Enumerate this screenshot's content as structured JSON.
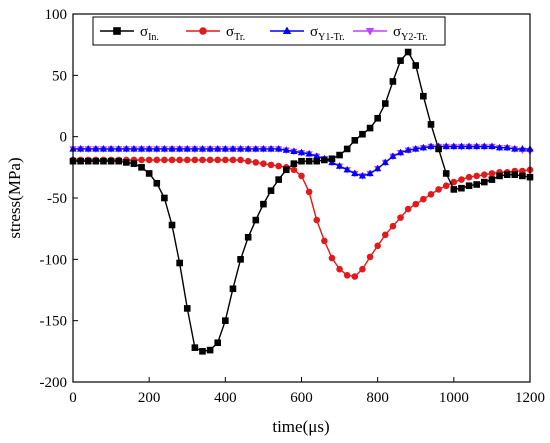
{
  "chart_data": {
    "type": "line",
    "xlabel": "time(μs)",
    "ylabel": "stress(MPa)",
    "xlim": [
      0,
      1200
    ],
    "ylim": [
      -200,
      100
    ],
    "xticks": [
      0,
      200,
      400,
      600,
      800,
      1000,
      1200
    ],
    "yticks": [
      -200,
      -150,
      -100,
      -50,
      0,
      50,
      100
    ],
    "grid": false,
    "legend_position": "top-left",
    "series": [
      {
        "name": "σ",
        "sub": "In.",
        "color": "#000000",
        "marker": "square",
        "x": [
          0,
          20,
          40,
          60,
          80,
          100,
          120,
          140,
          160,
          180,
          200,
          220,
          240,
          260,
          280,
          300,
          320,
          340,
          360,
          380,
          400,
          420,
          440,
          460,
          480,
          500,
          520,
          540,
          560,
          580,
          600,
          620,
          640,
          660,
          680,
          700,
          720,
          740,
          760,
          780,
          800,
          820,
          840,
          860,
          880,
          900,
          920,
          940,
          960,
          980,
          1000,
          1020,
          1040,
          1060,
          1080,
          1100,
          1120,
          1140,
          1160,
          1180,
          1200
        ],
        "y": [
          -20,
          -20,
          -20,
          -20,
          -20,
          -20,
          -20,
          -21,
          -22,
          -25,
          -30,
          -38,
          -50,
          -72,
          -103,
          -140,
          -172,
          -175,
          -174,
          -168,
          -150,
          -124,
          -100,
          -82,
          -68,
          -55,
          -44,
          -35,
          -27,
          -22,
          -20,
          -20,
          -20,
          -19,
          -18,
          -15,
          -10,
          -3,
          2,
          7,
          15,
          27,
          45,
          62,
          69,
          58,
          33,
          10,
          -10,
          -30,
          -43,
          -42,
          -40,
          -39,
          -37,
          -35,
          -32,
          -31,
          -31,
          -32,
          -33
        ]
      },
      {
        "name": "σ",
        "sub": "Tr.",
        "color": "#e31a1c",
        "marker": "circle",
        "x": [
          0,
          20,
          40,
          60,
          80,
          100,
          120,
          140,
          160,
          180,
          200,
          220,
          240,
          260,
          280,
          300,
          320,
          340,
          360,
          380,
          400,
          420,
          440,
          460,
          480,
          500,
          520,
          540,
          560,
          580,
          600,
          620,
          640,
          660,
          680,
          700,
          720,
          740,
          760,
          780,
          800,
          820,
          840,
          860,
          880,
          900,
          920,
          940,
          960,
          980,
          1000,
          1020,
          1040,
          1060,
          1080,
          1100,
          1120,
          1140,
          1160,
          1180,
          1200
        ],
        "y": [
          -19,
          -19,
          -19,
          -19,
          -19,
          -19,
          -19,
          -19,
          -19,
          -19,
          -19,
          -19,
          -19,
          -19,
          -19,
          -19,
          -19,
          -19,
          -19,
          -19,
          -19,
          -19,
          -19,
          -20,
          -21,
          -22,
          -23,
          -24,
          -25,
          -27,
          -32,
          -45,
          -68,
          -85,
          -99,
          -108,
          -113,
          -114,
          -108,
          -98,
          -89,
          -80,
          -73,
          -66,
          -59,
          -55,
          -51,
          -47,
          -43,
          -40,
          -37,
          -35,
          -33,
          -32,
          -31,
          -30,
          -29,
          -29,
          -28,
          -28,
          -27
        ]
      },
      {
        "name": "σ",
        "sub": "Y1-Tr.",
        "color": "#0000ff",
        "marker": "triangle-up",
        "x": [
          0,
          20,
          40,
          60,
          80,
          100,
          120,
          140,
          160,
          180,
          200,
          220,
          240,
          260,
          280,
          300,
          320,
          340,
          360,
          380,
          400,
          420,
          440,
          460,
          480,
          500,
          520,
          540,
          560,
          580,
          600,
          620,
          640,
          660,
          680,
          700,
          720,
          740,
          760,
          780,
          800,
          820,
          840,
          860,
          880,
          900,
          920,
          940,
          960,
          980,
          1000,
          1020,
          1040,
          1060,
          1080,
          1100,
          1120,
          1140,
          1160,
          1180,
          1200
        ],
        "y": [
          -10,
          -10,
          -10,
          -10,
          -10,
          -10,
          -10,
          -10,
          -10,
          -10,
          -10,
          -10,
          -10,
          -10,
          -10,
          -10,
          -10,
          -10,
          -10,
          -10,
          -10,
          -10,
          -10,
          -10,
          -10,
          -10,
          -10,
          -10,
          -11,
          -12,
          -13,
          -14,
          -16,
          -18,
          -21,
          -24,
          -27,
          -30,
          -32,
          -30,
          -26,
          -21,
          -16,
          -13,
          -11,
          -10,
          -9,
          -8,
          -8,
          -8,
          -8,
          -8,
          -8,
          -8,
          -8,
          -8,
          -9,
          -9,
          -10,
          -10,
          -10
        ]
      },
      {
        "name": "σ",
        "sub": "Y2-Tr.",
        "color": "#bf40ff",
        "marker": "triangle-down",
        "x": [
          0,
          20,
          40,
          60,
          80,
          100,
          120,
          140,
          160,
          180,
          200,
          220,
          240,
          260,
          280,
          300,
          320,
          340,
          360,
          380,
          400,
          420,
          440,
          460,
          480,
          500,
          520,
          540,
          560,
          580,
          600,
          620,
          640,
          660,
          680,
          700,
          720,
          740,
          760,
          780,
          800,
          820,
          840,
          860,
          880,
          900,
          920,
          940,
          960,
          980,
          1000,
          1020,
          1040,
          1060,
          1080,
          1100,
          1120,
          1140,
          1160,
          1180,
          1200
        ],
        "y": [
          -10,
          -10,
          -10,
          -10,
          -10,
          -10,
          -10,
          -10,
          -10,
          -10,
          -10,
          -10,
          -10,
          -10,
          -10,
          -10,
          -10,
          -10,
          -10,
          -10,
          -10,
          -10,
          -10,
          -10,
          -10,
          -10,
          -10,
          -10,
          -11,
          -12,
          -13,
          -14,
          -16,
          -18,
          -21,
          -24,
          -27,
          -30,
          -32,
          -30,
          -26,
          -21,
          -16,
          -13,
          -11,
          -10,
          -9,
          -8,
          -8,
          -8,
          -8,
          -8,
          -8,
          -8,
          -8,
          -8,
          -9,
          -9,
          -10,
          -11,
          -12
        ]
      }
    ]
  }
}
